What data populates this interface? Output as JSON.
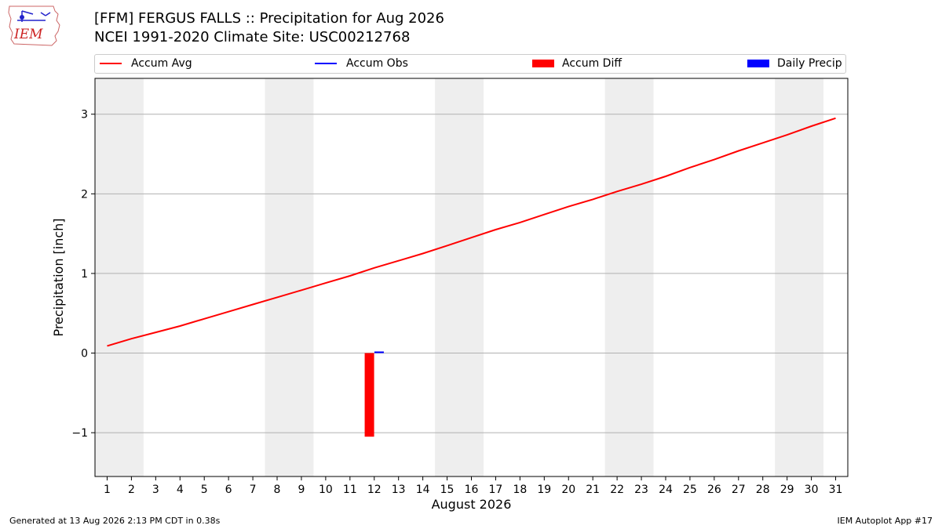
{
  "header": {
    "title_line1": "[FFM] FERGUS FALLS :: Precipitation for Aug 2026",
    "title_line2": "NCEI 1991-2020 Climate Site: USC00212768",
    "logo_text": "IEM"
  },
  "legend": {
    "items": [
      {
        "label": "Accum Avg",
        "color": "#ff0000",
        "kind": "line"
      },
      {
        "label": "Accum Obs",
        "color": "#0000ff",
        "kind": "line"
      },
      {
        "label": "Accum Diff",
        "color": "#ff0000",
        "kind": "box"
      },
      {
        "label": "Daily Precip",
        "color": "#0000ff",
        "kind": "box"
      }
    ]
  },
  "footer": {
    "left": "Generated at 13 Aug 2026 2:13 PM CDT in 0.38s",
    "right": "IEM Autoplot App #17"
  },
  "chart_data": {
    "type": "line",
    "xlabel": "August 2026",
    "ylabel": "Precipitation [inch]",
    "xlim": [
      0.5,
      31.5
    ],
    "ylim": [
      -1.55,
      3.45
    ],
    "yticks": [
      -1,
      0,
      1,
      2,
      3
    ],
    "ytick_labels": [
      "−1",
      "0",
      "1",
      "2",
      "3"
    ],
    "x": [
      1,
      2,
      3,
      4,
      5,
      6,
      7,
      8,
      9,
      10,
      11,
      12,
      13,
      14,
      15,
      16,
      17,
      18,
      19,
      20,
      21,
      22,
      23,
      24,
      25,
      26,
      27,
      28,
      29,
      30,
      31
    ],
    "weekend_bands": [
      [
        0.5,
        2.5
      ],
      [
        7.5,
        9.5
      ],
      [
        14.5,
        16.5
      ],
      [
        21.5,
        23.5
      ],
      [
        28.5,
        30.5
      ]
    ],
    "series": [
      {
        "name": "Accum Avg",
        "kind": "line",
        "color": "#ff0000",
        "values": [
          0.09,
          0.18,
          0.26,
          0.34,
          0.43,
          0.52,
          0.61,
          0.7,
          0.79,
          0.88,
          0.97,
          1.07,
          1.16,
          1.25,
          1.35,
          1.45,
          1.55,
          1.64,
          1.74,
          1.84,
          1.93,
          2.03,
          2.12,
          2.22,
          2.33,
          2.43,
          2.54,
          2.64,
          2.74,
          2.85,
          2.95
        ]
      },
      {
        "name": "Accum Diff",
        "kind": "bar",
        "color": "#ff0000",
        "offset": -0.2,
        "points": [
          {
            "x": 12,
            "y": -1.05
          }
        ]
      },
      {
        "name": "Daily Precip",
        "kind": "bar",
        "color": "#0000ff",
        "offset": 0.2,
        "points": [
          {
            "x": 12,
            "y": 0.02
          }
        ]
      }
    ]
  }
}
